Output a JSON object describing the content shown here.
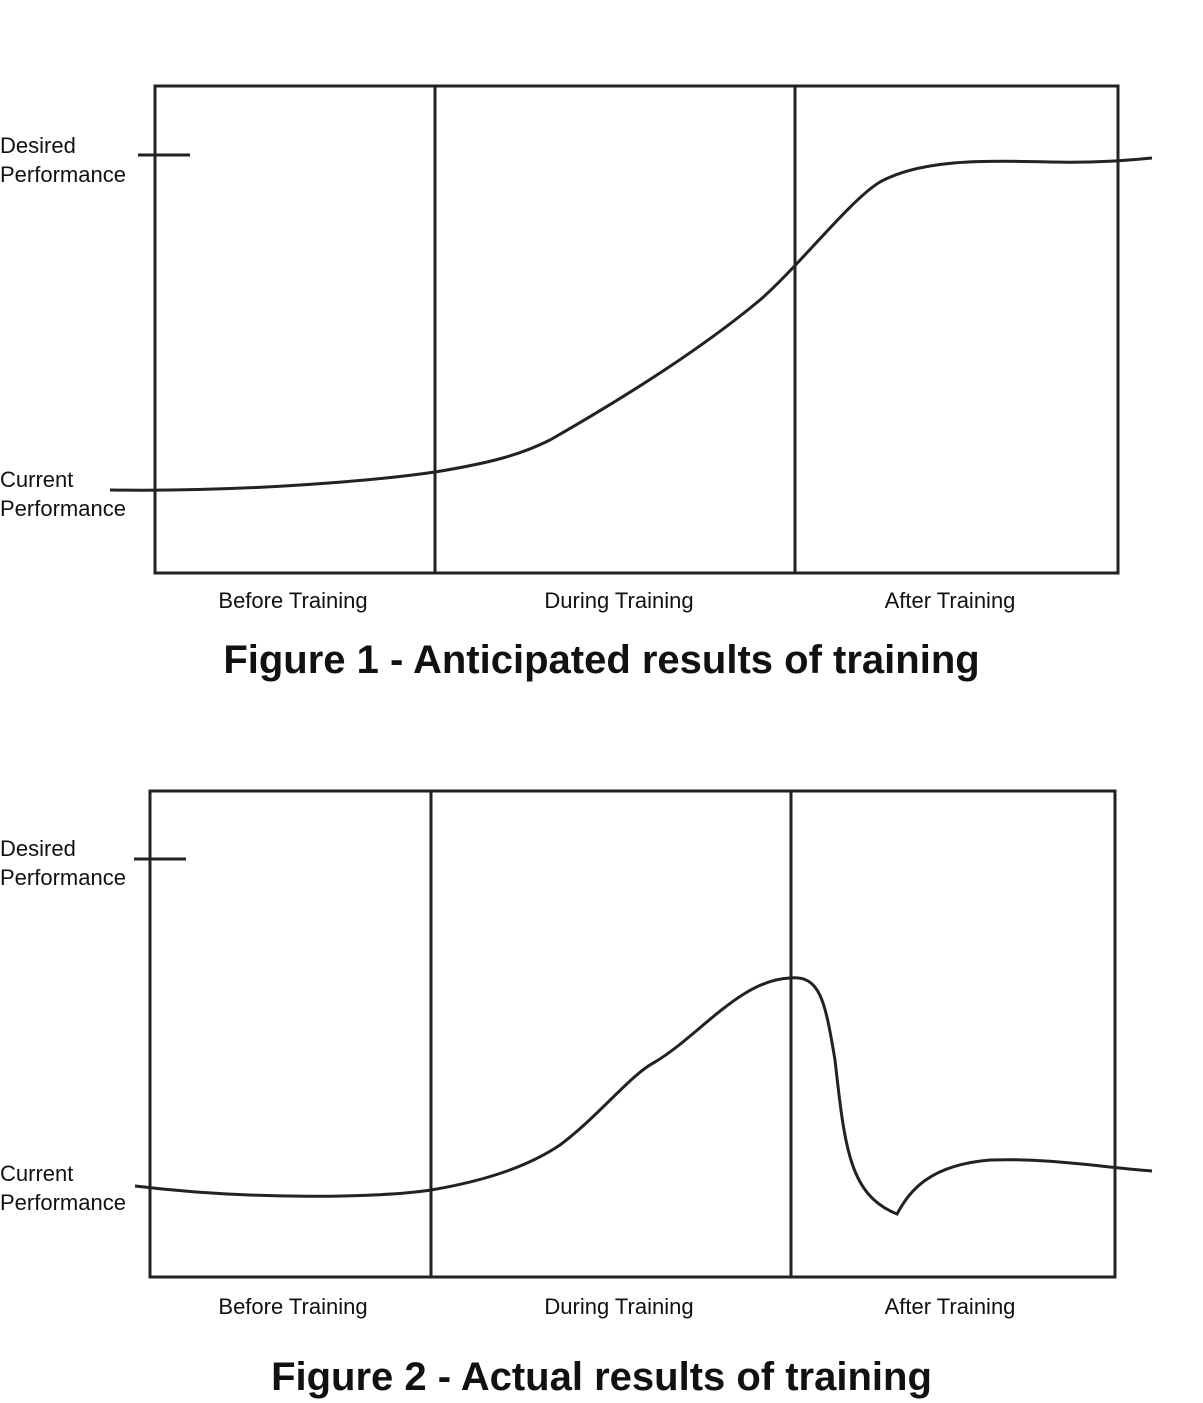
{
  "figures": [
    {
      "title": "Figure 1 - Anticipated results of training",
      "desired_label": "Desired Performance",
      "current_label": "Current Performance",
      "phases": [
        "Before Training",
        "During Training",
        "After Training"
      ]
    },
    {
      "title": "Figure 2 - Actual results of training",
      "desired_label": "Desired Performance",
      "current_label": "Current Performance",
      "phases": [
        "Before Training",
        "During Training",
        "After Training"
      ]
    }
  ]
}
